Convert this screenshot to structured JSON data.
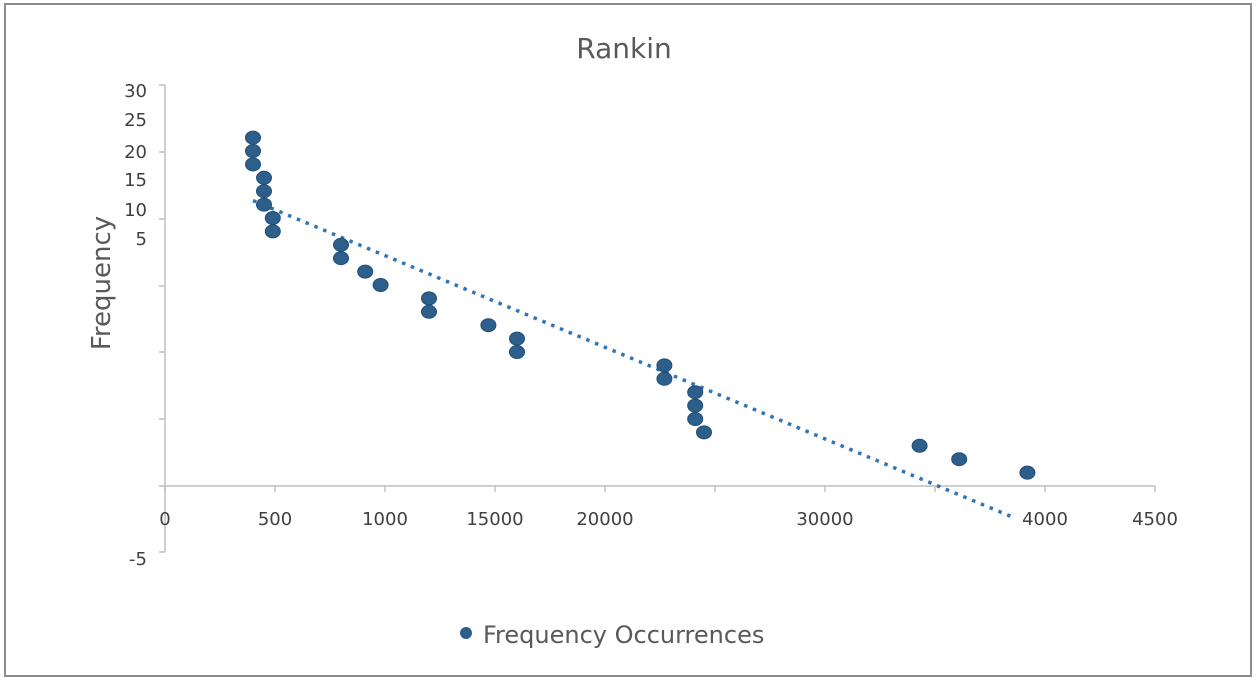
{
  "chart_data": {
    "type": "scatter",
    "title": "Rankin",
    "ylabel": "Frequency",
    "xlabel": "",
    "x_tick_labels": [
      "0",
      "500",
      "1000",
      "15000",
      "20000",
      "",
      "30000",
      "",
      "4000",
      "4500"
    ],
    "y_tick_labels": [
      "30",
      "25",
      "20",
      "15",
      "10",
      "5",
      "-5"
    ],
    "series": [
      {
        "name": "Frequency Occurrences",
        "color": "#2e5f8a",
        "marker": "circle",
        "points": [
          {
            "x": 4,
            "y": 26
          },
          {
            "x": 4,
            "y": 25
          },
          {
            "x": 4,
            "y": 24
          },
          {
            "x": 4.5,
            "y": 23
          },
          {
            "x": 4.5,
            "y": 22
          },
          {
            "x": 4.5,
            "y": 21
          },
          {
            "x": 4.9,
            "y": 20
          },
          {
            "x": 4.9,
            "y": 19
          },
          {
            "x": 8,
            "y": 18
          },
          {
            "x": 8,
            "y": 17
          },
          {
            "x": 9.1,
            "y": 16
          },
          {
            "x": 9.8,
            "y": 15
          },
          {
            "x": 12,
            "y": 14
          },
          {
            "x": 12,
            "y": 13
          },
          {
            "x": 14.7,
            "y": 12
          },
          {
            "x": 16,
            "y": 11
          },
          {
            "x": 16,
            "y": 10
          },
          {
            "x": 22.7,
            "y": 9
          },
          {
            "x": 22.7,
            "y": 8
          },
          {
            "x": 24.1,
            "y": 7
          },
          {
            "x": 24.1,
            "y": 6
          },
          {
            "x": 24.1,
            "y": 5
          },
          {
            "x": 24.5,
            "y": 4
          },
          {
            "x": 34.3,
            "y": 3
          },
          {
            "x": 36.1,
            "y": 2
          },
          {
            "x": 39.2,
            "y": 1
          }
        ]
      }
    ],
    "trendline": {
      "type": "linear",
      "style": "dotted",
      "color": "#2e75b6",
      "from": {
        "x": 4,
        "y": 21.3
      },
      "to": {
        "x": 38.5,
        "y": -2.3
      }
    },
    "xlim": [
      0,
      45
    ],
    "ylim": [
      -5,
      30
    ],
    "legend_position": "bottom",
    "grid": false
  }
}
